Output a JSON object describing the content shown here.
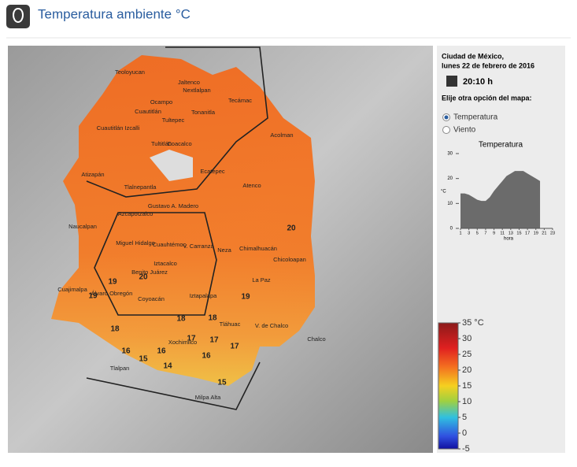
{
  "header": {
    "title": "Temperatura ambiente °C"
  },
  "panel": {
    "location": "Ciudad de México,",
    "date": "lunes 22 de febrero de 2016",
    "time": "20:10 h",
    "prompt": "Elije otra opción del mapa:",
    "options": [
      "Temperatura",
      "Viento"
    ],
    "selected": 0
  },
  "chart_data": {
    "type": "area",
    "title": "Temperatura",
    "x_label": "hora",
    "y_label": "°C",
    "color": "#6b6b6b",
    "x": [
      1,
      2,
      3,
      4,
      5,
      6,
      7,
      8,
      9,
      10,
      11,
      12,
      13,
      14,
      15,
      16,
      17,
      18,
      19,
      20
    ],
    "values": [
      14,
      14,
      13.5,
      12.5,
      11.5,
      11,
      11,
      12.5,
      15,
      17,
      19,
      21,
      22,
      23,
      23,
      23,
      22,
      21,
      20,
      19
    ],
    "xlim": [
      1,
      23
    ],
    "xticks": [
      1,
      3,
      5,
      7,
      9,
      11,
      13,
      15,
      17,
      19,
      21,
      23
    ],
    "ylim": [
      0,
      30
    ],
    "yticks": [
      0,
      10,
      20,
      30
    ]
  },
  "color_scale": {
    "lim": [
      -5,
      35
    ],
    "ticks": [
      {
        "value": 35,
        "label": "35 °C"
      },
      30,
      25,
      20,
      15,
      10,
      5,
      0,
      -5
    ]
  },
  "map": {
    "places": [
      "Teoloyucan",
      "Jaltenco",
      "Nextlalpan",
      "Ocampo",
      "Tecámac",
      "Cuautitlán",
      "Tultepec",
      "Tonanitla",
      "Cuautitlán Izcalli",
      "Tultitlán",
      "Coacalco",
      "Acolman",
      "Ecatepec",
      "Atizapán",
      "Tlalnepantla",
      "Atenco",
      "Gustavo A. Madero",
      "Azcapotzalco",
      "Naucalpan",
      "Miguel Hidalgo",
      "Cuauhtémoc",
      "V. Carranza",
      "Neza",
      "Chimalhuacán",
      "Chicoloapan",
      "Iztacalco",
      "Benito Juárez",
      "La Paz",
      "Cuajimalpa",
      "Álvaro Obregón",
      "Coyoacán",
      "Iztapalapa",
      "Tláhuac",
      "V. de Chalco",
      "Chalco",
      "Xochimilco",
      "Tlalpan",
      "Milpa Alta"
    ],
    "isotherms": [
      "20",
      "20",
      "19",
      "19",
      "18",
      "18",
      "18",
      "17",
      "17",
      "17",
      "16",
      "16",
      "16",
      "15",
      "15",
      "14",
      "19"
    ]
  }
}
